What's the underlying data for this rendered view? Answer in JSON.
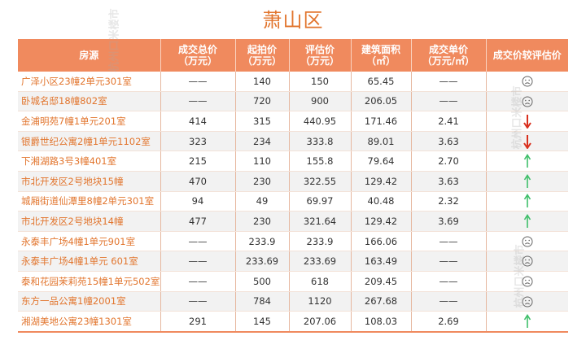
{
  "title": "萧山区",
  "watermark": "杭州口米楼市",
  "header": {
    "source": "房源",
    "deal_total": [
      "成交总价",
      "（万元）"
    ],
    "start_price": [
      "起拍价",
      "（万元）"
    ],
    "eval_price": [
      "评估价",
      "（万元）"
    ],
    "area": [
      "建筑面积",
      "（㎡）"
    ],
    "unit_price": [
      "成交单价",
      "（万元/㎡）"
    ],
    "compare": "成交价较评估价"
  },
  "colors": {
    "accent": "#f08a5e",
    "title": "#e2762f",
    "up": "#3fbf6a",
    "down": "#d9301e",
    "neutral": "#666666"
  },
  "rows": [
    {
      "name": "广泽小区23幢2单元301室",
      "deal": "——",
      "start": "140",
      "eval": "150",
      "area": "65.45",
      "unit": "——",
      "indicator": "sad-face"
    },
    {
      "name": "卧城名邸18幢802室",
      "deal": "——",
      "start": "720",
      "eval": "900",
      "area": "206.05",
      "unit": "——",
      "indicator": "sad-face"
    },
    {
      "name": "金浦明苑7幢1单元201室",
      "deal": "414",
      "start": "315",
      "eval": "440.95",
      "area": "171.46",
      "unit": "2.41",
      "indicator": "down-arrow"
    },
    {
      "name": "银爵世纪公寓2幢1单元1102室",
      "deal": "323",
      "start": "234",
      "eval": "333.8",
      "area": "89.01",
      "unit": "3.63",
      "indicator": "down-arrow"
    },
    {
      "name": "下湘湖路3号3幢401室",
      "deal": "215",
      "start": "110",
      "eval": "155.8",
      "area": "79.64",
      "unit": "2.70",
      "indicator": "up-arrow"
    },
    {
      "name": "市北开发区2号地块15幢",
      "deal": "470",
      "start": "230",
      "eval": "322.55",
      "area": "129.42",
      "unit": "3.63",
      "indicator": "up-arrow"
    },
    {
      "name": "城厢街道仙潭里8幢2单元301室",
      "deal": "94",
      "start": "49",
      "eval": "69.97",
      "area": "40.48",
      "unit": "2.32",
      "indicator": "up-arrow"
    },
    {
      "name": "市北开发区2号地块14幢",
      "deal": "477",
      "start": "230",
      "eval": "321.64",
      "area": "129.42",
      "unit": "3.69",
      "indicator": "up-arrow"
    },
    {
      "name": "永泰丰广场4幢1单元901室",
      "deal": "——",
      "start": "233.9",
      "eval": "233.9",
      "area": "166.06",
      "unit": "——",
      "indicator": "sad-face"
    },
    {
      "name": "永泰丰广场4幢1单元 601室",
      "deal": "——",
      "start": "233.69",
      "eval": "233.69",
      "area": "163.49",
      "unit": "——",
      "indicator": "sad-face"
    },
    {
      "name": "泰和花园茉莉苑15幢1单元502室",
      "deal": "——",
      "start": "500",
      "eval": "618",
      "area": "209.45",
      "unit": "——",
      "indicator": "sad-face"
    },
    {
      "name": "东方一品公寓1幢2001室",
      "deal": "——",
      "start": "784",
      "eval": "1120",
      "area": "267.68",
      "unit": "——",
      "indicator": "sad-face"
    },
    {
      "name": "湘湖美地公寓23幢1301室",
      "deal": "291",
      "start": "145",
      "eval": "207.06",
      "area": "108.03",
      "unit": "2.69",
      "indicator": "up-arrow"
    }
  ]
}
